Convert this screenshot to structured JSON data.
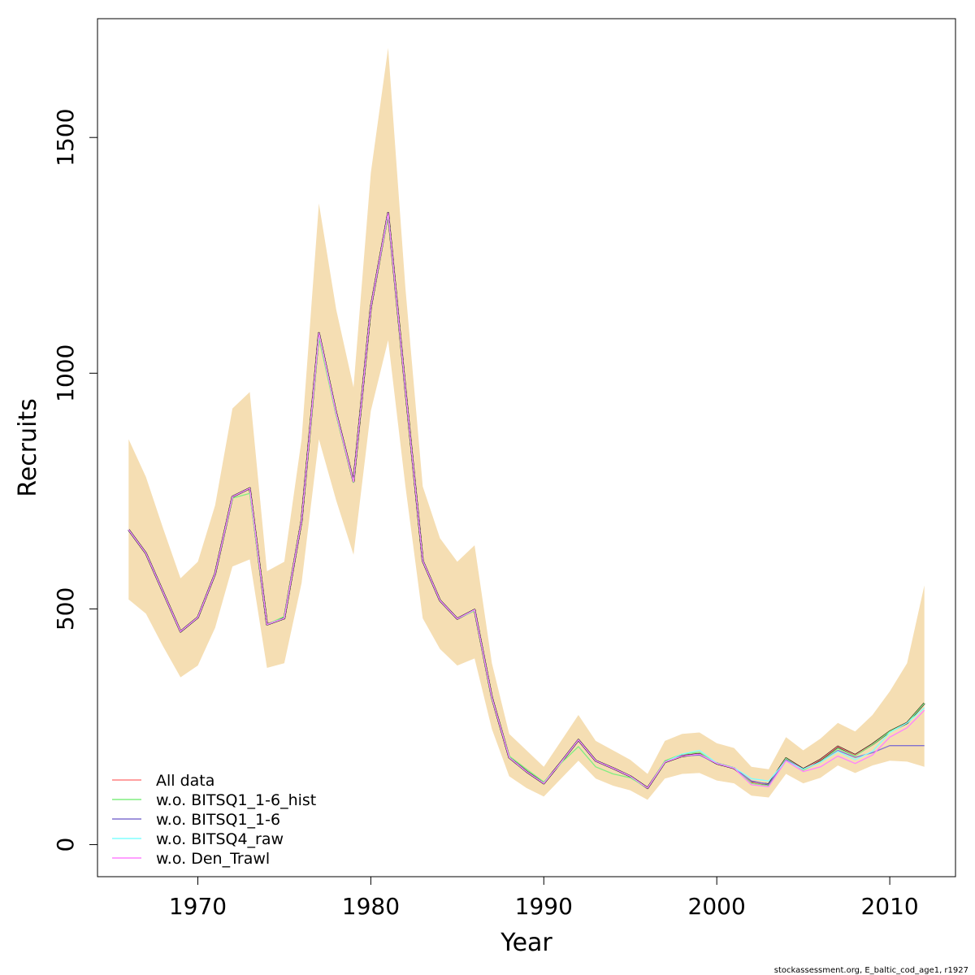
{
  "chart_data": {
    "type": "line",
    "xlabel": "Year",
    "ylabel": "Recruits",
    "xlim": [
      1964.2,
      2013.8
    ],
    "ylim": [
      -68,
      1752
    ],
    "x_ticks": [
      1970,
      1980,
      1990,
      2000,
      2010
    ],
    "y_ticks": [
      0,
      500,
      1000,
      1500
    ],
    "grid": false,
    "legend_position": "bottom-left",
    "band_color": "#f5deb3",
    "years": [
      1966,
      1967,
      1968,
      1969,
      1970,
      1971,
      1972,
      1973,
      1974,
      1975,
      1976,
      1977,
      1978,
      1979,
      1980,
      1981,
      1982,
      1983,
      1984,
      1985,
      1986,
      1987,
      1988,
      1989,
      1990,
      1991,
      1992,
      1993,
      1994,
      1995,
      1996,
      1997,
      1998,
      1999,
      2000,
      2001,
      2002,
      2003,
      2004,
      2005,
      2006,
      2007,
      2008,
      2009,
      2010,
      2011,
      2012
    ],
    "confidence_band": {
      "upper": [
        860,
        780,
        670,
        565,
        600,
        720,
        925,
        960,
        580,
        600,
        860,
        1360,
        1135,
        970,
        1425,
        1690,
        1180,
        760,
        650,
        600,
        635,
        385,
        235,
        200,
        165,
        220,
        275,
        220,
        200,
        180,
        150,
        220,
        235,
        238,
        215,
        205,
        165,
        160,
        228,
        200,
        225,
        258,
        240,
        275,
        325,
        385,
        550
      ],
      "lower": [
        520,
        490,
        420,
        355,
        380,
        460,
        590,
        605,
        375,
        385,
        555,
        860,
        730,
        615,
        920,
        1070,
        760,
        480,
        415,
        380,
        395,
        245,
        145,
        120,
        102,
        140,
        178,
        140,
        125,
        115,
        95,
        140,
        150,
        152,
        136,
        130,
        104,
        100,
        150,
        130,
        142,
        168,
        152,
        168,
        178,
        176,
        165
      ]
    },
    "series": [
      {
        "name": "All data",
        "color": "#ff8080",
        "values": [
          668,
          618,
          535,
          452,
          482,
          575,
          738,
          756,
          467,
          480,
          688,
          1085,
          915,
          770,
          1140,
          1340,
          965,
          602,
          518,
          479,
          498,
          312,
          185,
          155,
          130,
          175,
          222,
          178,
          162,
          145,
          120,
          175,
          188,
          192,
          172,
          162,
          132,
          128,
          183,
          160,
          180,
          208,
          190,
          213,
          240,
          258,
          300
        ]
      },
      {
        "name": "w.o. BITSQ1_1-6_hist",
        "color": "#80ee80",
        "values": [
          668,
          618,
          535,
          452,
          482,
          575,
          735,
          745,
          467,
          484,
          688,
          1075,
          910,
          768,
          1140,
          1335,
          962,
          602,
          518,
          479,
          496,
          310,
          188,
          160,
          133,
          173,
          208,
          165,
          150,
          142,
          120,
          178,
          192,
          196,
          172,
          163,
          130,
          125,
          183,
          158,
          176,
          204,
          188,
          212,
          240,
          258,
          300
        ]
      },
      {
        "name": "w.o. BITSQ1_1-6",
        "color": "#8070d0",
        "values": [
          668,
          618,
          535,
          452,
          482,
          575,
          738,
          756,
          467,
          480,
          688,
          1085,
          915,
          770,
          1140,
          1340,
          965,
          602,
          518,
          479,
          498,
          312,
          185,
          155,
          130,
          175,
          222,
          178,
          162,
          145,
          120,
          175,
          188,
          190,
          172,
          162,
          135,
          128,
          180,
          160,
          175,
          200,
          185,
          195,
          210,
          210,
          210
        ]
      },
      {
        "name": "w.o. BITSQ4_raw",
        "color": "#80ffff",
        "values": [
          668,
          618,
          535,
          452,
          482,
          575,
          738,
          756,
          467,
          480,
          688,
          1085,
          915,
          770,
          1140,
          1340,
          965,
          602,
          518,
          479,
          498,
          312,
          185,
          155,
          130,
          175,
          222,
          178,
          162,
          145,
          120,
          175,
          192,
          200,
          173,
          163,
          140,
          135,
          178,
          160,
          175,
          198,
          180,
          198,
          238,
          258,
          290
        ]
      },
      {
        "name": "w.o. Den_Trawl",
        "color": "#ff80ff",
        "values": [
          668,
          618,
          535,
          452,
          482,
          575,
          738,
          756,
          467,
          480,
          688,
          1085,
          915,
          770,
          1140,
          1340,
          965,
          602,
          518,
          479,
          498,
          312,
          185,
          155,
          130,
          175,
          222,
          178,
          162,
          145,
          120,
          175,
          188,
          192,
          172,
          162,
          127,
          123,
          178,
          155,
          165,
          188,
          172,
          190,
          228,
          248,
          285
        ]
      }
    ],
    "overlay_lines": [
      {
        "color": "#000000",
        "values": [
          668,
          618,
          535,
          452,
          482,
          575,
          738,
          756,
          467,
          480,
          688,
          1085,
          915,
          770,
          1140,
          1340,
          965,
          602,
          518,
          479,
          498,
          312,
          185,
          155,
          130,
          175,
          222,
          178,
          162,
          145,
          120,
          175,
          188,
          192,
          172,
          162,
          132,
          128,
          183,
          160,
          180,
          208,
          190,
          213,
          240,
          258,
          300
        ]
      }
    ]
  },
  "footer_text": "stockassessment.org, E_baltic_cod_age1, r1927"
}
